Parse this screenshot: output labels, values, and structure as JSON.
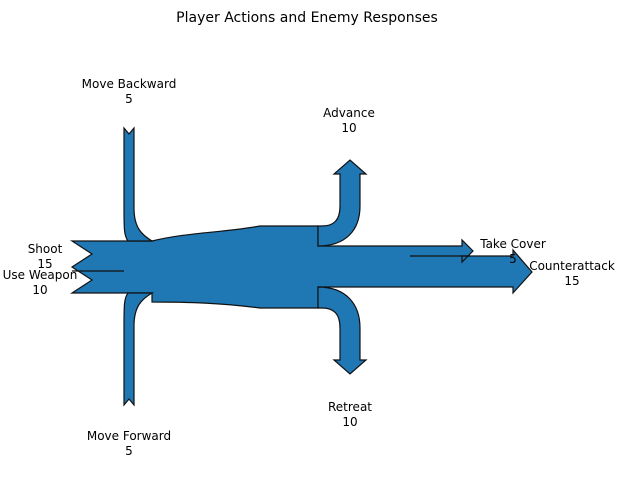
{
  "chart_data": {
    "type": "sankey",
    "title": "Player Actions and Enemy Responses",
    "unit": "",
    "flows": [
      {
        "name": "shoot",
        "label": "Shoot",
        "value": 15,
        "kind": "input",
        "color": "#000000"
      },
      {
        "name": "use-weapon",
        "label": "Use Weapon",
        "value": 10,
        "kind": "input",
        "color": "#000000"
      },
      {
        "name": "move-forward",
        "label": "Move Forward",
        "value": 5,
        "kind": "input",
        "color": "#ff0000"
      },
      {
        "name": "move-backward",
        "label": "Move Backward",
        "value": 5,
        "kind": "input",
        "color": "#000000"
      },
      {
        "name": "counterattack",
        "label": "Counterattack",
        "value": 15,
        "kind": "output",
        "color": "#000000"
      },
      {
        "name": "take-cover",
        "label": "Take Cover",
        "value": 5,
        "kind": "output",
        "color": "#000000"
      },
      {
        "name": "advance",
        "label": "Advance",
        "value": 10,
        "kind": "output",
        "color": "#008000"
      },
      {
        "name": "retreat",
        "label": "Retreat",
        "value": 10,
        "kind": "output",
        "color": "#000000"
      }
    ],
    "fill_color": "#1f77b4",
    "edge_color": "#111111"
  }
}
